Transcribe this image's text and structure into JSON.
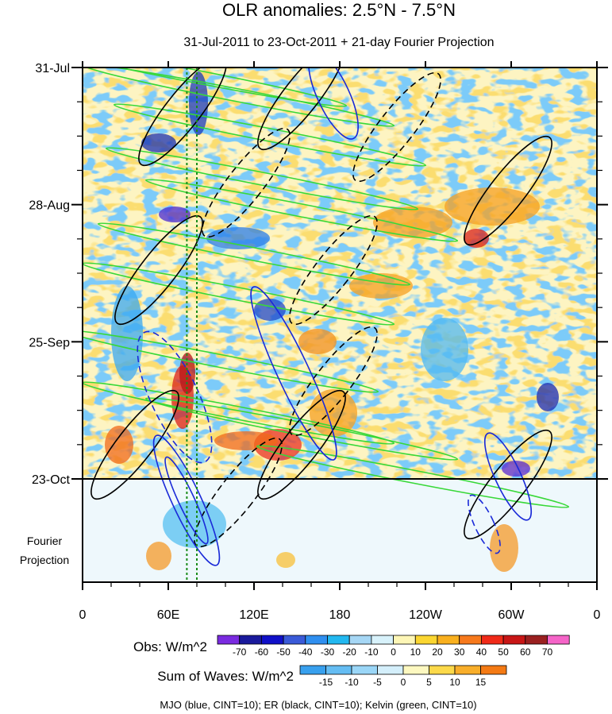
{
  "chart_data": {
    "type": "heatmap",
    "title": "OLR anomalies: 2.5°N - 7.5°N",
    "subtitle": "31-Jul-2011 to 23-Oct-2011 + 21-day Fourier Projection",
    "x_ticks": [
      {
        "lon": 0,
        "label": "0"
      },
      {
        "lon": 60,
        "label": "60E"
      },
      {
        "lon": 120,
        "label": "120E"
      },
      {
        "lon": 180,
        "label": "180"
      },
      {
        "lon": 240,
        "label": "120W"
      },
      {
        "lon": 300,
        "label": "60W"
      },
      {
        "lon": 360,
        "label": "0"
      }
    ],
    "y_ticks": [
      {
        "day": 0,
        "label": "31-Jul"
      },
      {
        "day": 28,
        "label": "28-Aug"
      },
      {
        "day": 56,
        "label": "25-Sep"
      },
      {
        "day": 84,
        "label": "23-Oct"
      }
    ],
    "projection_label": [
      "Fourier",
      "Projection"
    ],
    "obs_colorbar": {
      "label": "Obs: W/m^2",
      "levels": [
        -70,
        -60,
        -50,
        -40,
        -30,
        -20,
        -10,
        0,
        10,
        20,
        30,
        40,
        50,
        60,
        70
      ],
      "colors": [
        "#7a2be0",
        "#1a1a9c",
        "#1010c8",
        "#3a5ad8",
        "#2f8ff0",
        "#22b8f0",
        "#a6d7f5",
        "#d8f2fb",
        "#fdf6b6",
        "#fbd631",
        "#f9b01e",
        "#f7791c",
        "#f02a18",
        "#c81616",
        "#9a2020",
        "#f564c8"
      ]
    },
    "waves_colorbar": {
      "label": "Sum of Waves: W/m^2",
      "levels": [
        -15,
        -10,
        -5,
        0,
        5,
        10,
        15
      ],
      "colors": [
        "#38a0ee",
        "#65bdf3",
        "#9ad6f7",
        "#d4effb",
        "#fdf8c0",
        "#fcd94a",
        "#f8ae2a",
        "#f47a14"
      ]
    },
    "footer": "MJO (blue, CINT=10); ER (black, CINT=10); Kelvin (green, CINT=10)",
    "reference_lines": [
      {
        "lon": 73,
        "color": "#1a8c1a"
      },
      {
        "lon": 80,
        "color": "#1a8c1a"
      }
    ]
  }
}
